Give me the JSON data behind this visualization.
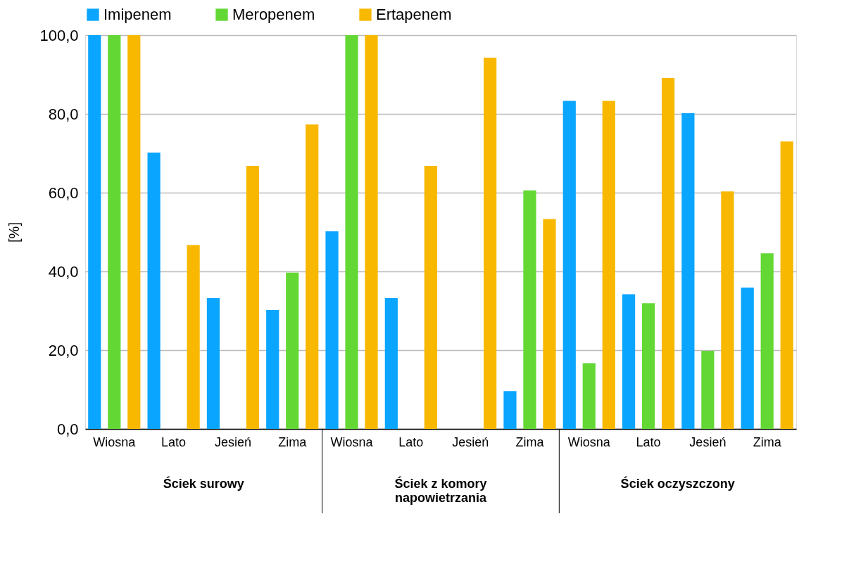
{
  "chart_data": {
    "type": "bar",
    "ylabel": "[%]",
    "categories": [
      "Wiosna",
      "Lato",
      "Jesień",
      "Zima",
      "Wiosna",
      "Lato",
      "Jesień",
      "Zima",
      "Wiosna",
      "Lato",
      "Jesień",
      "Zima"
    ],
    "series": [
      {
        "name": "Imipenem",
        "color": "#0aa5ff",
        "values": [
          100,
          70.2,
          33.2,
          30.2,
          50.2,
          33.2,
          0,
          9.6,
          83.3,
          34.2,
          80.2,
          35.9
        ]
      },
      {
        "name": "Meropenem",
        "color": "#63d834",
        "values": [
          100,
          0,
          0,
          39.7,
          100,
          0,
          0,
          60.6,
          16.7,
          31.9,
          19.8,
          44.6
        ]
      },
      {
        "name": "Ertapenem",
        "color": "#f8b800",
        "values": [
          100,
          46.7,
          66.8,
          77.3,
          100,
          66.8,
          94.3,
          53.3,
          83.3,
          89.1,
          60.3,
          73.0
        ]
      }
    ],
    "ylim": [
      0,
      100
    ],
    "yticks": [
      {
        "value": 0,
        "label": "0,0"
      },
      {
        "value": 20,
        "label": "20,0"
      },
      {
        "value": 40,
        "label": "40,0"
      },
      {
        "value": 60,
        "label": "60,0"
      },
      {
        "value": 80,
        "label": "80,0"
      },
      {
        "value": 100,
        "label": "100,0"
      }
    ],
    "grid": "y",
    "legend": "top",
    "annotations": [
      "Ściek surowy",
      "Ściek z komory napowietrzania",
      "Ściek oczyszczony"
    ]
  }
}
